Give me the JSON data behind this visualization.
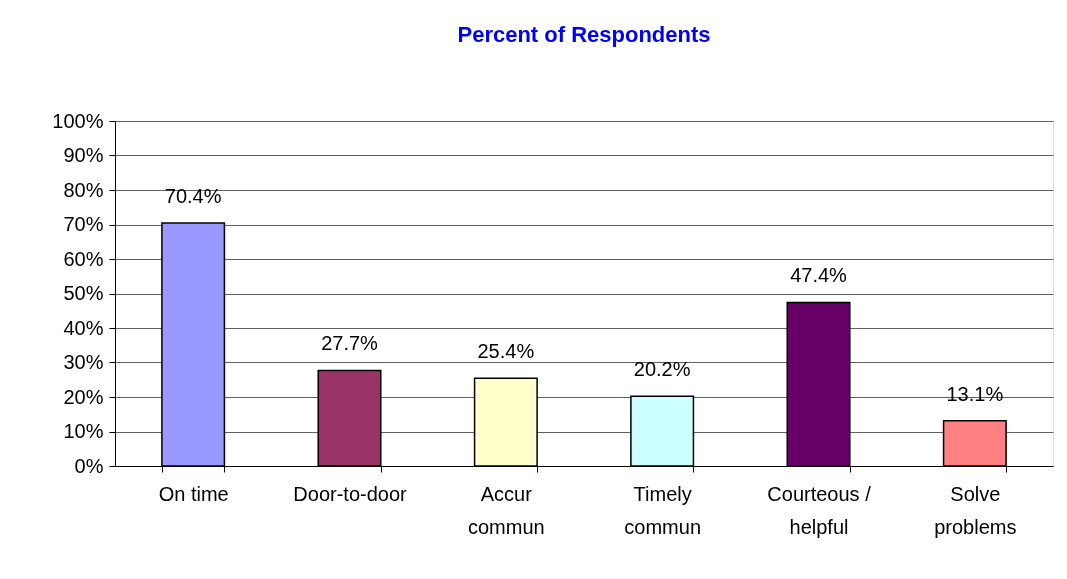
{
  "chart_data": {
    "type": "bar",
    "title": "Percent of Respondents",
    "categories": [
      "On time",
      "Door-to-door",
      "Accur commun",
      "Timely commun",
      "Courteous / helpful",
      "Solve problems"
    ],
    "values": [
      70.4,
      27.7,
      25.4,
      20.2,
      47.4,
      13.1
    ],
    "value_labels": [
      "70.4%",
      "27.7%",
      "25.4%",
      "20.2%",
      "47.4%",
      "13.1%"
    ],
    "colors": [
      "#9999ff",
      "#993366",
      "#ffffcc",
      "#ccffff",
      "#660066",
      "#ff8080"
    ],
    "ylim": [
      0,
      100
    ],
    "yticks": [
      {
        "value": 0,
        "label": "0%"
      },
      {
        "value": 10,
        "label": "10%"
      },
      {
        "value": 20,
        "label": "20%"
      },
      {
        "value": 30,
        "label": "30%"
      },
      {
        "value": 40,
        "label": "40%"
      },
      {
        "value": 50,
        "label": "50%"
      },
      {
        "value": 60,
        "label": "60%"
      },
      {
        "value": 70,
        "label": "70%"
      },
      {
        "value": 80,
        "label": "80%"
      },
      {
        "value": 90,
        "label": "90%"
      },
      {
        "value": 100,
        "label": "100%"
      }
    ],
    "grid": "y"
  }
}
